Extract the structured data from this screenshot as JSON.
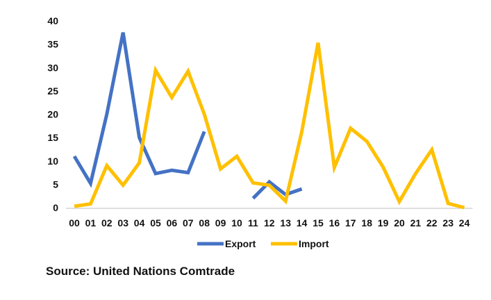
{
  "chart_data": {
    "type": "line",
    "title": "",
    "xlabel": "",
    "ylabel": "",
    "categories": [
      "00",
      "01",
      "02",
      "03",
      "04",
      "05",
      "06",
      "07",
      "08",
      "09",
      "10",
      "11",
      "12",
      "13",
      "14",
      "15",
      "16",
      "17",
      "18",
      "19",
      "20",
      "21",
      "22",
      "23",
      "24"
    ],
    "ylim": [
      0,
      40
    ],
    "yticks": [
      0,
      5,
      10,
      15,
      20,
      25,
      30,
      35,
      40
    ],
    "grid": false,
    "legend_position": "bottom",
    "series": [
      {
        "name": "Export",
        "color": "#4472C4",
        "values": [
          11,
          5.2,
          20,
          37.5,
          15,
          7.3,
          8,
          7.5,
          16.3,
          null,
          null,
          2,
          5.5,
          2.8,
          4,
          null,
          null,
          null,
          null,
          null,
          null,
          null,
          null,
          null,
          null
        ]
      },
      {
        "name": "Import",
        "color": "#FFC000",
        "values": [
          0.3,
          0.8,
          9,
          4.8,
          9.6,
          29.4,
          23.6,
          29.2,
          20,
          8.3,
          11,
          5.3,
          4.8,
          1.4,
          16.3,
          35.3,
          8.6,
          17,
          14.2,
          8.7,
          1.3,
          7.3,
          12.4,
          0.9,
          0
        ]
      }
    ]
  },
  "source_note": "Source: United Nations Comtrade"
}
